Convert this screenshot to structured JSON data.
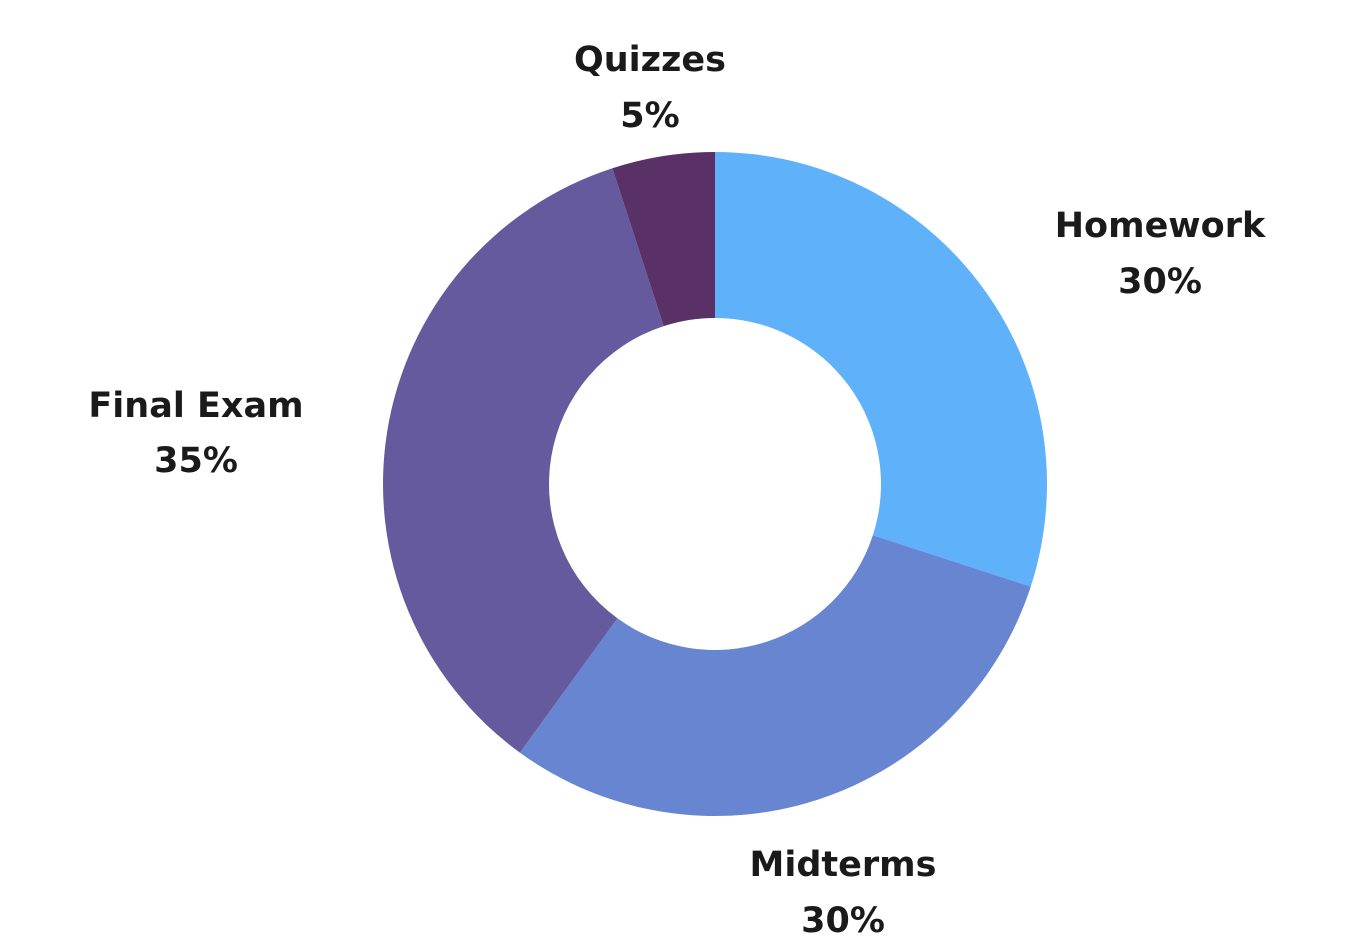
{
  "chart_data": {
    "type": "pie",
    "donut": true,
    "categories": [
      "Homework",
      "Midterms",
      "Final Exam",
      "Quizzes"
    ],
    "values": [
      30,
      30,
      35,
      5
    ],
    "value_labels": [
      "30%",
      "30%",
      "35%",
      "5%"
    ],
    "colors": [
      "#5fb1fa",
      "#6785d0",
      "#655a9d",
      "#593166"
    ],
    "title": "",
    "legend": "none"
  }
}
